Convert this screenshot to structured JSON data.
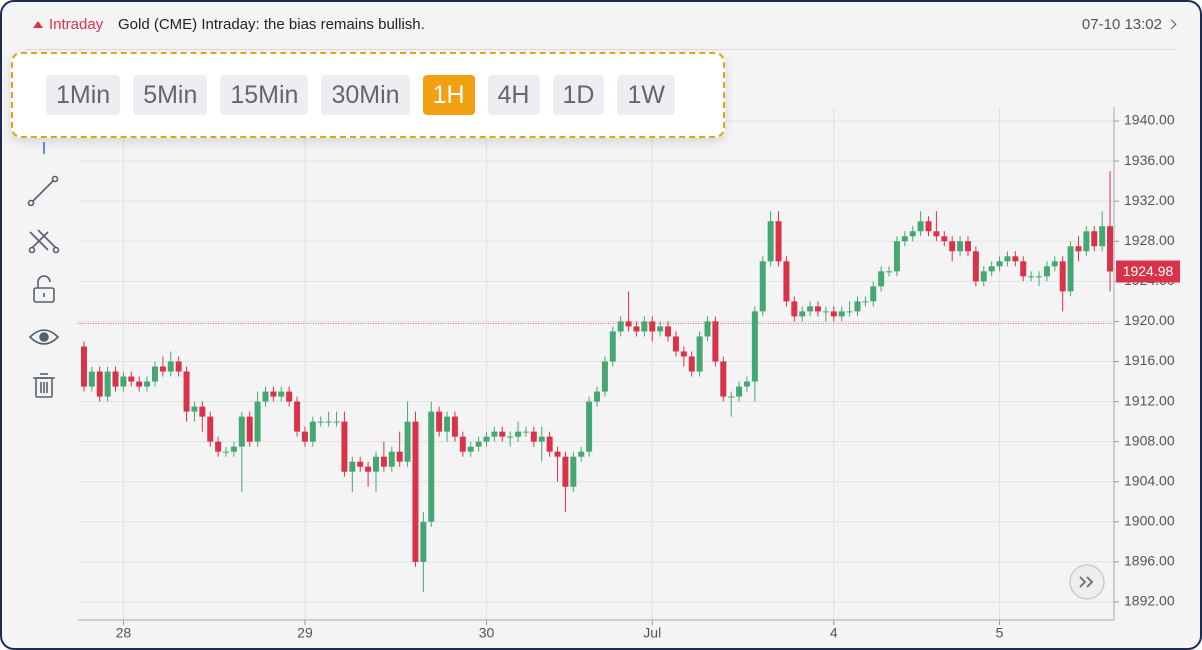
{
  "header": {
    "tag": "Intraday",
    "title": "Gold (CME) Intraday: the bias remains bullish.",
    "time": "07-10 13:02"
  },
  "timeframes": {
    "items": [
      "1Min",
      "5Min",
      "15Min",
      "30Min",
      "1H",
      "4H",
      "1D",
      "1W"
    ],
    "active": "1H"
  },
  "chart_data": {
    "type": "candlestick",
    "up_color": "#45a872",
    "down_color": "#d9334a",
    "grid": true,
    "reference_line": 1919.8,
    "ylim": [
      1890.2,
      1941.4
    ],
    "yticks": [
      {
        "value": 1892,
        "label": "1892.00"
      },
      {
        "value": 1896,
        "label": "1896.00"
      },
      {
        "value": 1900,
        "label": "1900.00"
      },
      {
        "value": 1904,
        "label": "1904.00"
      },
      {
        "value": 1908,
        "label": "1908.00"
      },
      {
        "value": 1912,
        "label": "1912.00"
      },
      {
        "value": 1916,
        "label": "1916.00"
      },
      {
        "value": 1920,
        "label": "1920.00"
      },
      {
        "value": 1924,
        "label": "1924.00"
      },
      {
        "value": 1928,
        "label": "1928.00"
      },
      {
        "value": 1932,
        "label": "1932.00"
      },
      {
        "value": 1936,
        "label": "1936.00"
      },
      {
        "value": 1940,
        "label": "1940.00"
      }
    ],
    "categories": [
      null,
      null,
      null,
      null,
      null,
      "28",
      null,
      null,
      null,
      null,
      null,
      null,
      null,
      null,
      null,
      null,
      null,
      null,
      null,
      null,
      null,
      null,
      null,
      null,
      null,
      null,
      null,
      null,
      "29",
      null,
      null,
      null,
      null,
      null,
      null,
      null,
      null,
      null,
      null,
      null,
      null,
      null,
      null,
      null,
      null,
      null,
      null,
      null,
      null,
      null,
      null,
      "30",
      null,
      null,
      null,
      null,
      null,
      null,
      null,
      null,
      null,
      null,
      null,
      null,
      null,
      null,
      null,
      null,
      null,
      null,
      null,
      null,
      "Jul",
      null,
      null,
      null,
      null,
      null,
      null,
      null,
      null,
      null,
      null,
      null,
      null,
      null,
      null,
      null,
      null,
      null,
      null,
      null,
      null,
      null,
      null,
      "4",
      null,
      null,
      null,
      null,
      null,
      null,
      null,
      null,
      null,
      null,
      null,
      null,
      null,
      null,
      null,
      null,
      null,
      null,
      null,
      null,
      "5",
      null,
      null,
      null,
      null,
      null,
      null,
      null,
      null,
      null,
      null,
      null,
      null,
      null,
      null
    ],
    "open": [
      1917.5,
      1913.5,
      1915,
      1912.5,
      1915,
      1913.5,
      1914.5,
      1914,
      1913.5,
      1914,
      1915.5,
      1915,
      1916,
      1915,
      1911,
      1911.5,
      1910.5,
      1908,
      1907,
      1907,
      1907.5,
      1910.5,
      1908,
      1912,
      1913,
      1912.5,
      1913,
      1912,
      1909,
      1908,
      1910,
      1910,
      1910,
      1910,
      1905,
      1906,
      1905.5,
      1905,
      1906.5,
      1905.5,
      1907,
      1906,
      1910,
      1896,
      1900,
      1911,
      1909,
      1910.5,
      1908.5,
      1907,
      1907.5,
      1908,
      1908.5,
      1909,
      1908.5,
      1908.5,
      1909,
      1909,
      1908,
      1908.5,
      1907,
      1906.5,
      1903.5,
      1906.5,
      1907,
      1912,
      1913,
      1916,
      1919,
      1920,
      1919.5,
      1919,
      1920,
      1919,
      1919.5,
      1918.5,
      1917,
      1916.5,
      1915,
      1918.5,
      1920,
      1916,
      1912.5,
      1912.5,
      1913.5,
      1914,
      1921,
      1926,
      1930,
      1926,
      1922,
      1920.5,
      1921,
      1921.5,
      1921,
      1921,
      1920.5,
      1921,
      1921,
      1922,
      1922,
      1923.5,
      1925,
      1925,
      1928,
      1928.5,
      1929,
      1930,
      1929,
      1928.5,
      1928,
      1927,
      1928,
      1927,
      1924,
      1925,
      1925.5,
      1926,
      1926.5,
      1926,
      1924.5,
      1924.5,
      1924.5,
      1925.5,
      1926,
      1923,
      1927.5,
      1927,
      1929,
      1927.5,
      1929.5
    ],
    "high": [
      1918,
      1915.5,
      1915.5,
      1915.5,
      1915.5,
      1915,
      1915,
      1914.5,
      1914.5,
      1916,
      1916.5,
      1917,
      1916.5,
      1915.5,
      1912,
      1912,
      1911,
      1908.5,
      1907.5,
      1908,
      1911,
      1911,
      1913,
      1913.5,
      1913.5,
      1913.5,
      1913.5,
      1912.5,
      1909.5,
      1910.5,
      1910.5,
      1911,
      1911,
      1911,
      1906.5,
      1906.5,
      1906,
      1907,
      1908,
      1907.5,
      1909,
      1912,
      1911,
      1901,
      1912,
      1911.5,
      1911,
      1911,
      1909,
      1908,
      1908.5,
      1909,
      1909.5,
      1909.5,
      1909,
      1910,
      1909.5,
      1909.5,
      1909.5,
      1909,
      1907.5,
      1907,
      1907,
      1907.5,
      1912.5,
      1913.5,
      1916.5,
      1919.5,
      1920.5,
      1923,
      1920,
      1920.5,
      1920.5,
      1920,
      1920,
      1919,
      1917.5,
      1917,
      1919,
      1920.5,
      1920.5,
      1916.5,
      1913,
      1914,
      1914.5,
      1921.5,
      1926.5,
      1931,
      1931,
      1926.5,
      1922.5,
      1921.5,
      1922,
      1922,
      1921.5,
      1921.5,
      1921.5,
      1922,
      1922.5,
      1922.5,
      1924,
      1925.5,
      1925.5,
      1928.5,
      1929,
      1929.5,
      1931,
      1930.5,
      1931,
      1929,
      1928.5,
      1928.5,
      1928.5,
      1927.5,
      1925.5,
      1926,
      1926.5,
      1927,
      1927,
      1926.5,
      1925,
      1925,
      1926,
      1926.5,
      1926.5,
      1928,
      1928.5,
      1929.5,
      1929.5,
      1931,
      1935
    ],
    "low": [
      1913,
      1913,
      1912,
      1912,
      1913,
      1913,
      1913.5,
      1913,
      1913,
      1913.5,
      1914.5,
      1914.5,
      1914.5,
      1910,
      1910,
      1909,
      1907.5,
      1906.5,
      1906.5,
      1906.5,
      1903,
      1907.5,
      1907.5,
      1911.5,
      1912,
      1912,
      1911.5,
      1908.5,
      1907.5,
      1907.5,
      1909.5,
      1909.5,
      1909.5,
      1904.5,
      1903,
      1905,
      1903.5,
      1903,
      1905,
      1905,
      1905.5,
      1905.5,
      1895.5,
      1893,
      1899.5,
      1908.5,
      1908,
      1908,
      1906.5,
      1906.5,
      1907,
      1907.5,
      1908,
      1908,
      1907.5,
      1908,
      1908.5,
      1907.5,
      1906,
      1906.5,
      1904,
      1901,
      1903,
      1906,
      1906.5,
      1911.5,
      1912.5,
      1915.5,
      1918.5,
      1919,
      1918.5,
      1918.5,
      1918,
      1918.5,
      1918,
      1916.5,
      1915.5,
      1914.5,
      1914.5,
      1918,
      1915.5,
      1912,
      1910.5,
      1912,
      1913,
      1912,
      1920.5,
      1925.5,
      1925.5,
      1921.5,
      1920,
      1920,
      1920.5,
      1920.5,
      1920,
      1920,
      1920,
      1920.5,
      1920.5,
      1921.5,
      1921.5,
      1923,
      1924.5,
      1924.5,
      1927.5,
      1928,
      1928.5,
      1928.5,
      1928,
      1927.5,
      1926,
      1926.5,
      1926.5,
      1923.5,
      1923.5,
      1924.5,
      1925,
      1925.5,
      1925.5,
      1924,
      1924,
      1923.5,
      1924,
      1925,
      1921,
      1922.5,
      1926,
      1926.5,
      1927,
      1927,
      1923
    ],
    "close": [
      1913.5,
      1915,
      1912.5,
      1915,
      1913.5,
      1914.5,
      1914,
      1913.5,
      1914,
      1915.5,
      1915,
      1916,
      1915,
      1911,
      1911.5,
      1910.5,
      1908,
      1907,
      1907,
      1907.5,
      1910.5,
      1908,
      1912,
      1913,
      1912.5,
      1913,
      1912,
      1909,
      1908,
      1910,
      1910,
      1910,
      1910,
      1905,
      1906,
      1905.5,
      1905,
      1906.5,
      1905.5,
      1907,
      1906,
      1910,
      1896,
      1900,
      1911,
      1909,
      1910.5,
      1908.5,
      1907,
      1907.5,
      1908,
      1908.5,
      1909,
      1908.5,
      1908.5,
      1909,
      1909,
      1908,
      1908.5,
      1907,
      1906.5,
      1903.5,
      1906.5,
      1907,
      1912,
      1913,
      1916,
      1919,
      1920,
      1919.5,
      1919,
      1920,
      1919,
      1919.5,
      1918.5,
      1917,
      1916.5,
      1915,
      1918.5,
      1920,
      1916,
      1912.5,
      1912.5,
      1913.5,
      1914,
      1921,
      1926,
      1930,
      1926,
      1922,
      1920.5,
      1921,
      1921.5,
      1921,
      1921,
      1920.5,
      1921,
      1921,
      1922,
      1922,
      1923.5,
      1925,
      1925,
      1928,
      1928.5,
      1929,
      1930,
      1929,
      1928.5,
      1928,
      1927,
      1928,
      1927,
      1924,
      1925,
      1925.5,
      1926,
      1926.5,
      1926,
      1924.5,
      1924.5,
      1924.5,
      1925.5,
      1926,
      1923,
      1927.5,
      1927,
      1929,
      1927.5,
      1929.5,
      1924.98
    ]
  }
}
